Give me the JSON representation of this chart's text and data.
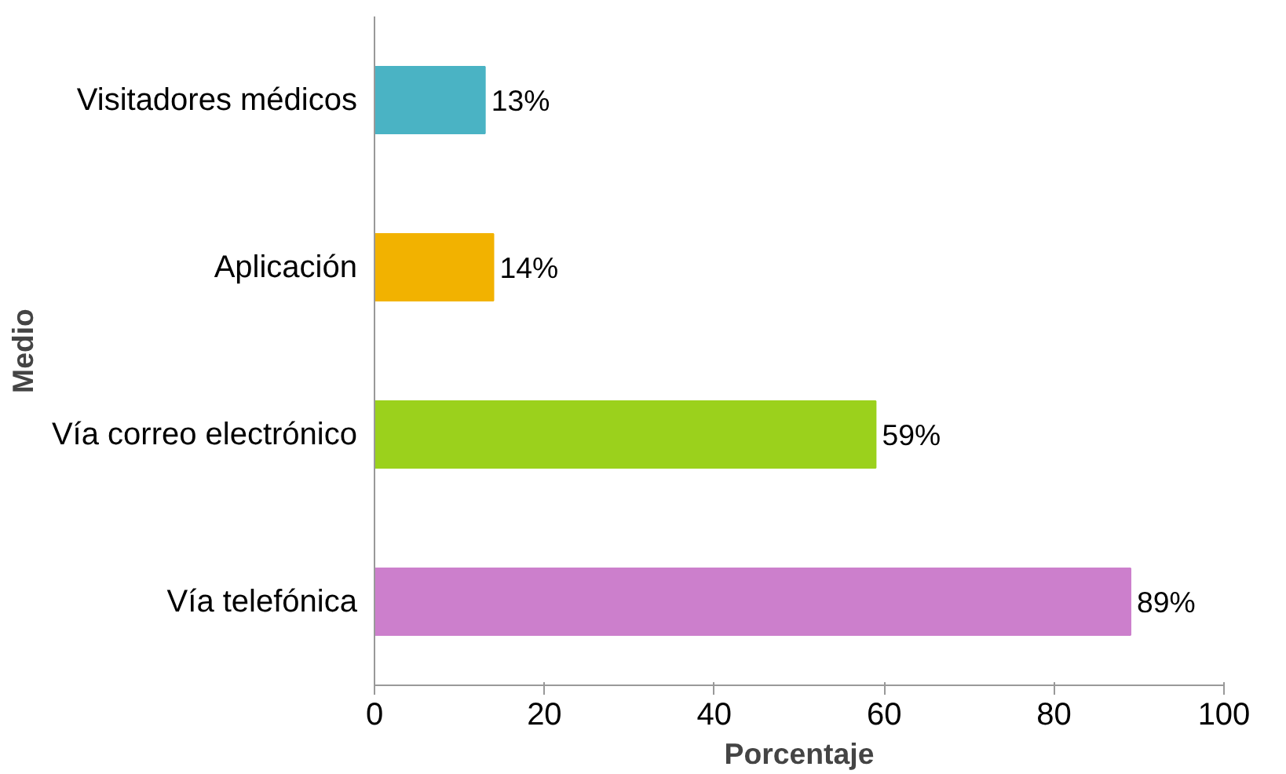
{
  "chart_data": {
    "type": "bar",
    "orientation": "horizontal",
    "xlabel": "Porcentaje",
    "ylabel": "Medio",
    "categories": [
      "Visitadores médicos",
      "Aplicación",
      "Vía correo electrónico",
      "Vía telefónica"
    ],
    "values": [
      13,
      14,
      59,
      89
    ],
    "colors": [
      "#4ab3c4",
      "#f2b200",
      "#9bd11c",
      "#cc7fcc"
    ],
    "value_labels": [
      "13%",
      "14%",
      "59%",
      "89%"
    ],
    "xlim": [
      0,
      100
    ],
    "xticks": [
      0,
      20,
      40,
      60,
      80,
      100
    ],
    "grid": false
  }
}
